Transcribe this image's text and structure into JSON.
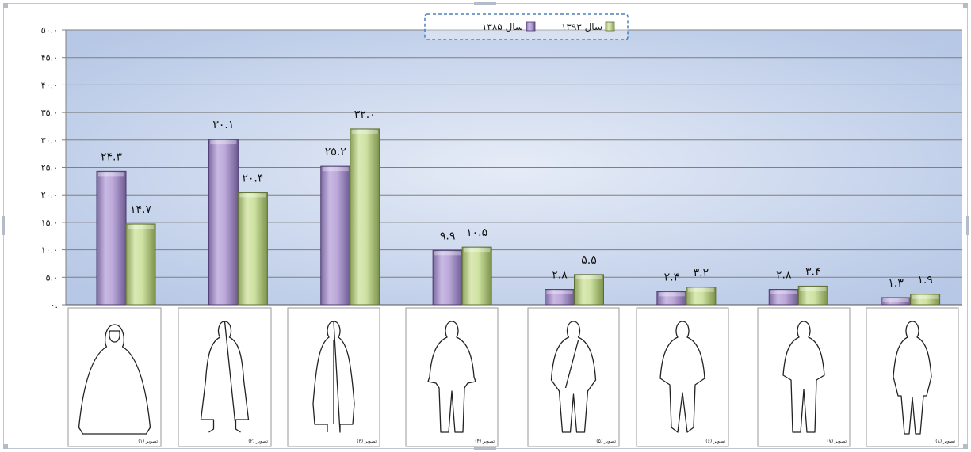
{
  "chart_data": {
    "type": "bar",
    "categories": [
      "تصویر (۱)",
      "تصویر (۲)",
      "تصویر (۳)",
      "تصویر (۴)",
      "تصویر (۵)",
      "تصویر (۶)",
      "تصویر (۷)",
      "تصویر (۸)"
    ],
    "series": [
      {
        "name": "سال ۱۳۸۵",
        "values": [
          24.3,
          30.1,
          25.2,
          9.9,
          2.8,
          2.4,
          2.8,
          1.3
        ],
        "labels": [
          "۲۴.۳",
          "۳۰.۱",
          "۲۵.۲",
          "۹.۹",
          "۲.۸",
          "۲.۴",
          "۲.۸",
          "۱.۳"
        ],
        "color": "#b8a6d6"
      },
      {
        "name": "سال ۱۳۹۳",
        "values": [
          14.7,
          20.4,
          32.0,
          10.5,
          5.5,
          3.2,
          3.4,
          1.9
        ],
        "labels": [
          "۱۴.۷",
          "۲۰.۴",
          "۳۲.۰",
          "۱۰.۵",
          "۵.۵",
          "۳.۲",
          "۳.۴",
          "۱.۹"
        ],
        "color": "#c9dc9c"
      }
    ],
    "ylim": [
      0,
      50
    ],
    "yticks": [
      "۰.",
      "۵.۰",
      "۱۰.۰",
      "۱۵.۰",
      "۲۰.۰",
      "۲۵.۰",
      "۳۰.۰",
      "۳۵.۰",
      "۴۰.۰",
      "۴۵.۰",
      "۵۰.۰"
    ],
    "grid": true,
    "legend_position": "top-center",
    "title": "",
    "xlabel": "",
    "ylabel": ""
  },
  "colors": {
    "plot_bg_light": "#e6ecf7",
    "plot_bg_dark": "#b7c8e6",
    "grid": "#7f7f7f",
    "legend_border": "#4f7fc0"
  },
  "icons": [
    "woman-chador-figure-icon",
    "woman-long-dress-figure-icon",
    "woman-long-coat-figure-icon",
    "woman-jacket-trousers-figure-icon",
    "woman-asymmetric-coat-figure-icon",
    "woman-short-coat-figure-icon",
    "woman-blouse-figure-icon",
    "woman-skirt-suit-figure-icon"
  ]
}
